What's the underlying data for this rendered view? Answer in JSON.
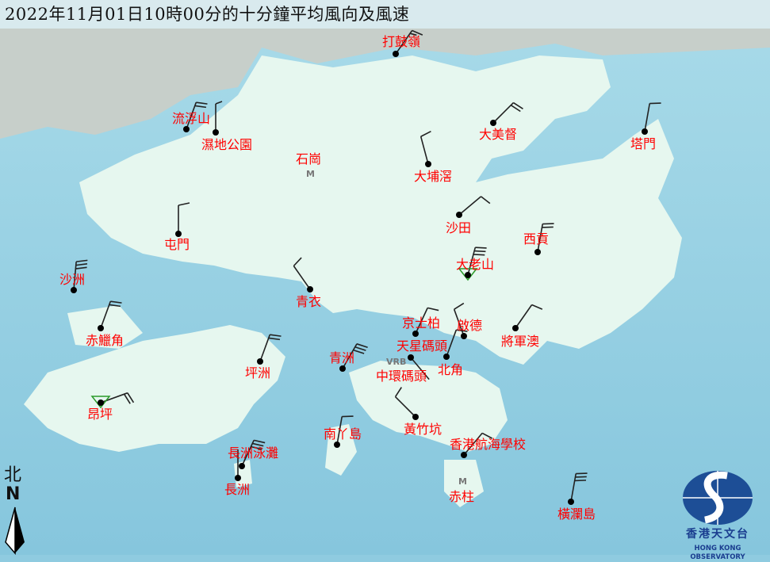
{
  "title": "2022年11月01日10時00分的十分鐘平均風向及風速",
  "colors": {
    "sea": "#8fcbe0",
    "land": "#e6f7ef",
    "label": "#ff0000",
    "barb": "#222222"
  },
  "stations": [
    {
      "name": "打鼓嶺",
      "dot": "circle",
      "dir": 35,
      "feathers": 1.5
    },
    {
      "name": "流浮山",
      "dot": "circle",
      "dir": 20,
      "feathers": 2
    },
    {
      "name": "濕地公園",
      "dot": "circle",
      "dir": 0,
      "feathers": 0.5
    },
    {
      "name": "大美督",
      "dot": "circle",
      "dir": 45,
      "feathers": 2
    },
    {
      "name": "塔門",
      "dot": "circle",
      "dir": 10,
      "feathers": 1
    },
    {
      "name": "大埔滘",
      "dot": "circle",
      "dir": 345,
      "feathers": 1
    },
    {
      "name": "沙田",
      "dot": "circle",
      "dir": 50,
      "feathers": 1
    },
    {
      "name": "屯門",
      "dot": "circle",
      "dir": 0,
      "feathers": 1
    },
    {
      "name": "西貢",
      "dot": "circle",
      "dir": 10,
      "feathers": 2
    },
    {
      "name": "大老山",
      "dot": "triangle",
      "dir": 15,
      "feathers": 3
    },
    {
      "name": "沙洲",
      "dot": "circle",
      "dir": 5,
      "feathers": 3
    },
    {
      "name": "青衣",
      "dot": "circle",
      "dir": 325,
      "feathers": 1
    },
    {
      "name": "赤鱲角",
      "dot": "circle",
      "dir": 20,
      "feathers": 2
    },
    {
      "name": "京士柏",
      "dot": "circle",
      "dir": 25,
      "feathers": 1
    },
    {
      "name": "啟德",
      "dot": "circle",
      "dir": 340,
      "feathers": 1
    },
    {
      "name": "將軍澳",
      "dot": "circle",
      "dir": 35,
      "feathers": 1
    },
    {
      "name": "天星碼頭",
      "dot": "circle",
      "dir": 140,
      "feathers": 0
    },
    {
      "name": "北角",
      "dot": "circle",
      "dir": 20,
      "feathers": 1
    },
    {
      "name": "坪洲",
      "dot": "circle",
      "dir": 20,
      "feathers": 2
    },
    {
      "name": "青洲",
      "dot": "circle",
      "dir": 30,
      "feathers": 3
    },
    {
      "name": "昂坪",
      "dot": "triangle",
      "dir": 70,
      "feathers": 2
    },
    {
      "name": "黃竹坑",
      "dot": "circle",
      "dir": 315,
      "feathers": 1
    },
    {
      "name": "南丫島",
      "dot": "circle",
      "dir": 10,
      "feathers": 1
    },
    {
      "name": "香港航海學校",
      "dot": "circle",
      "dir": 40,
      "feathers": 1
    },
    {
      "name": "長洲泳灘",
      "dot": "circle",
      "dir": 25,
      "feathers": 3
    },
    {
      "name": "長洲",
      "dot": "circle",
      "dir": 0,
      "feathers": 0
    },
    {
      "name": "橫瀾島",
      "dot": "circle",
      "dir": 10,
      "feathers": 3
    }
  ],
  "missing_stations": [
    {
      "name": "石崗",
      "marker": "M"
    },
    {
      "name": "赤柱",
      "marker": "M"
    },
    {
      "name": "中環碼頭",
      "marker": "VRB"
    }
  ],
  "compass": {
    "chinese": "北",
    "letter": "N"
  },
  "logo": {
    "chinese": "香港天文台",
    "english": "HONG KONG OBSERVATORY"
  }
}
